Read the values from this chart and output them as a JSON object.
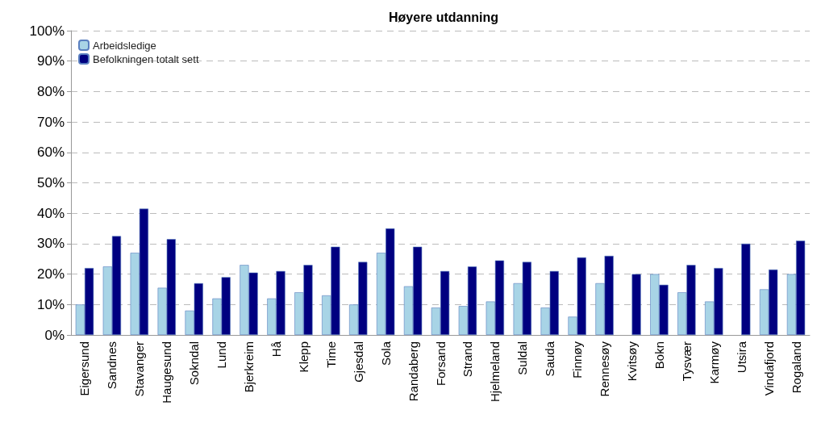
{
  "chart_data": {
    "type": "bar",
    "title": "Høyere utdanning",
    "categories": [
      "Eigersund",
      "Sandnes",
      "Stavanger",
      "Haugesund",
      "Sokndal",
      "Lund",
      "Bjerkreim",
      "Hå",
      "Klepp",
      "Time",
      "Gjesdal",
      "Sola",
      "Randaberg",
      "Forsand",
      "Strand",
      "Hjelmeland",
      "Suldal",
      "Sauda",
      "Finnøy",
      "Rennesøy",
      "Kvitsøy",
      "Bokn",
      "Tysvær",
      "Karmøy",
      "Utsira",
      "Vindafjord",
      "Rogaland"
    ],
    "series": [
      {
        "name": "Arbeidsledige",
        "color": "#a8d4e6",
        "values": [
          10,
          22.5,
          27,
          15.5,
          8,
          12,
          23,
          12,
          14,
          13,
          10,
          27,
          16,
          9,
          9.5,
          11,
          17,
          9,
          6,
          17,
          0,
          20,
          14,
          11,
          0,
          15,
          20
        ]
      },
      {
        "name": "Befolkningen totalt sett",
        "color": "#000080",
        "values": [
          22,
          32.5,
          41.5,
          31.5,
          17,
          19,
          20.5,
          21,
          23,
          29,
          24,
          35,
          29,
          21,
          22.5,
          24.5,
          24,
          21,
          25.5,
          26,
          20,
          16.5,
          23,
          22,
          30,
          21.5,
          31
        ]
      }
    ],
    "ylim": [
      0,
      100
    ],
    "yticks": [
      {
        "value": 0,
        "label": "0%"
      },
      {
        "value": 10,
        "label": "10%"
      },
      {
        "value": 20,
        "label": "20%"
      },
      {
        "value": 30,
        "label": "30%"
      },
      {
        "value": 40,
        "label": "40%"
      },
      {
        "value": 50,
        "label": "50%"
      },
      {
        "value": 60,
        "label": "60%"
      },
      {
        "value": 70,
        "label": "70%"
      },
      {
        "value": 80,
        "label": "80%"
      },
      {
        "value": 90,
        "label": "90%"
      },
      {
        "value": 100,
        "label": "100%"
      }
    ],
    "grid": "y",
    "legend": "top left"
  }
}
